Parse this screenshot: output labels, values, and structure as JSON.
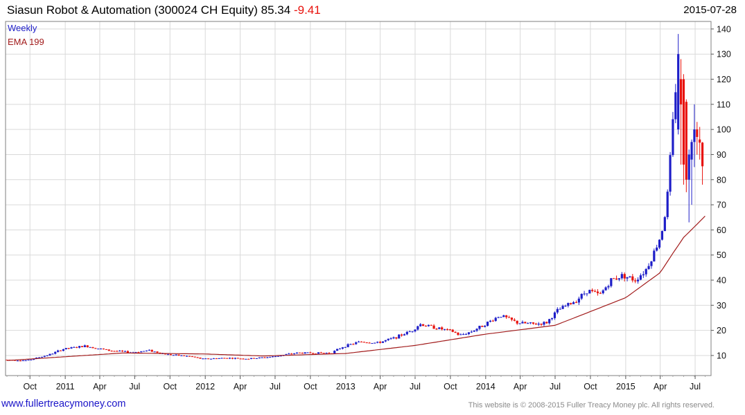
{
  "header": {
    "title": "Siasun Robot & Automation (300024 CH Equity)",
    "last_price": "85.34",
    "change": "-9.41",
    "date": "2015-07-28"
  },
  "footer": {
    "url": "www.fullertreacymoney.com",
    "copyright": "This website is © 2008-2015 Fuller Treacy Money plc. All rights reserved."
  },
  "colors": {
    "up": "#1e1ec8",
    "down": "#e8120d",
    "ema": "#a11a1a",
    "legend_weekly": "#1e1ec8",
    "legend_ema": "#a11a1a",
    "grid": "#d9d9d9"
  },
  "chart_data": {
    "type": "candlestick",
    "frequency": "Weekly",
    "legend": [
      "Weekly",
      "EMA 199"
    ],
    "legend_position": "top-left",
    "y_axis_position": "right",
    "grid": true,
    "ylim": [
      2,
      143
    ],
    "yticks": [
      10,
      20,
      30,
      40,
      50,
      60,
      70,
      80,
      90,
      100,
      110,
      120,
      130,
      140
    ],
    "x_start": "2010-08-02",
    "x_end": "2015-07-28",
    "xticks": [
      {
        "date": "2010-10-01",
        "label": "Oct"
      },
      {
        "date": "2011-01-01",
        "label": "2011"
      },
      {
        "date": "2011-04-01",
        "label": "Apr"
      },
      {
        "date": "2011-07-01",
        "label": "Jul"
      },
      {
        "date": "2011-10-01",
        "label": "Oct"
      },
      {
        "date": "2012-01-01",
        "label": "2012"
      },
      {
        "date": "2012-04-01",
        "label": "Apr"
      },
      {
        "date": "2012-07-01",
        "label": "Jul"
      },
      {
        "date": "2012-10-01",
        "label": "Oct"
      },
      {
        "date": "2013-01-01",
        "label": "2013"
      },
      {
        "date": "2013-04-01",
        "label": "Apr"
      },
      {
        "date": "2013-07-01",
        "label": "Jul"
      },
      {
        "date": "2013-10-01",
        "label": "Oct"
      },
      {
        "date": "2014-01-01",
        "label": "2014"
      },
      {
        "date": "2014-04-01",
        "label": "Apr"
      },
      {
        "date": "2014-07-01",
        "label": "Jul"
      },
      {
        "date": "2014-10-01",
        "label": "Oct"
      },
      {
        "date": "2015-01-01",
        "label": "2015"
      },
      {
        "date": "2015-04-01",
        "label": "Apr"
      },
      {
        "date": "2015-07-01",
        "label": "Jul"
      }
    ],
    "price_path": [
      [
        "2010-08-02",
        8.3
      ],
      [
        "2010-10-01",
        8.0
      ],
      [
        "2010-12-01",
        10.5
      ],
      [
        "2011-01-01",
        12.5
      ],
      [
        "2011-03-01",
        13.8
      ],
      [
        "2011-05-01",
        12.0
      ],
      [
        "2011-07-01",
        11.2
      ],
      [
        "2011-08-15",
        12.0
      ],
      [
        "2011-10-01",
        10.4
      ],
      [
        "2011-12-01",
        9.6
      ],
      [
        "2012-01-01",
        8.6
      ],
      [
        "2012-03-01",
        9.0
      ],
      [
        "2012-05-01",
        8.7
      ],
      [
        "2012-07-01",
        9.5
      ],
      [
        "2012-09-01",
        11.0
      ],
      [
        "2012-12-01",
        11.0
      ],
      [
        "2013-01-01",
        13.5
      ],
      [
        "2013-02-15",
        15.5
      ],
      [
        "2013-04-01",
        15.0
      ],
      [
        "2013-05-15",
        17.0
      ],
      [
        "2013-07-01",
        20.0
      ],
      [
        "2013-07-20",
        22.5
      ],
      [
        "2013-09-01",
        21.0
      ],
      [
        "2013-10-15",
        19.5
      ],
      [
        "2013-11-01",
        18.0
      ],
      [
        "2013-12-01",
        19.5
      ],
      [
        "2014-01-01",
        22.0
      ],
      [
        "2014-02-15",
        26.0
      ],
      [
        "2014-04-01",
        23.0
      ],
      [
        "2014-05-15",
        22.5
      ],
      [
        "2014-06-15",
        23.0
      ],
      [
        "2014-07-15",
        28.0
      ],
      [
        "2014-09-01",
        32.0
      ],
      [
        "2014-10-01",
        36.0
      ],
      [
        "2014-11-01",
        34.0
      ],
      [
        "2014-12-01",
        40.0
      ],
      [
        "2015-01-01",
        42.0
      ],
      [
        "2015-02-01",
        40.0
      ],
      [
        "2015-03-01",
        44.0
      ],
      [
        "2015-03-20",
        50.0
      ],
      [
        "2015-04-10",
        58.0
      ],
      [
        "2015-04-25",
        70.0
      ],
      [
        "2015-05-10",
        100.0
      ],
      [
        "2015-05-22",
        125.0
      ],
      [
        "2015-06-05",
        110.0
      ],
      [
        "2015-06-15",
        80.0
      ],
      [
        "2015-06-29",
        85.0
      ],
      [
        "2015-07-13",
        98.0
      ],
      [
        "2015-07-20",
        94.75
      ],
      [
        "2015-07-27",
        85.34
      ]
    ],
    "ema_path": [
      [
        "2010-08-02",
        8.0
      ],
      [
        "2011-01-01",
        9.5
      ],
      [
        "2011-06-01",
        11.0
      ],
      [
        "2012-01-01",
        10.6
      ],
      [
        "2012-06-01",
        9.8
      ],
      [
        "2013-01-01",
        10.8
      ],
      [
        "2013-07-01",
        14.0
      ],
      [
        "2014-01-01",
        18.5
      ],
      [
        "2014-07-01",
        22.0
      ],
      [
        "2015-01-01",
        33.0
      ],
      [
        "2015-04-01",
        43.0
      ],
      [
        "2015-05-01",
        50.0
      ],
      [
        "2015-06-01",
        57.0
      ],
      [
        "2015-07-01",
        61.5
      ],
      [
        "2015-07-27",
        65.5
      ]
    ],
    "special_candles": [
      {
        "date": "2015-05-18",
        "open": 100,
        "close": 130,
        "high": 138,
        "low": 98
      },
      {
        "date": "2015-05-25",
        "open": 120,
        "close": 110,
        "high": 128,
        "low": 86
      },
      {
        "date": "2015-06-01",
        "open": 120,
        "close": 86,
        "high": 122,
        "low": 78
      },
      {
        "date": "2015-06-08",
        "open": 111,
        "close": 80,
        "high": 112,
        "low": 75
      },
      {
        "date": "2015-06-15",
        "open": 80,
        "close": 90,
        "high": 92,
        "low": 63
      },
      {
        "date": "2015-06-22",
        "open": 88,
        "close": 95,
        "high": 96,
        "low": 70
      },
      {
        "date": "2015-06-29",
        "open": 95,
        "close": 100,
        "high": 110,
        "low": 85
      },
      {
        "date": "2015-07-06",
        "open": 100,
        "close": 97,
        "high": 103,
        "low": 90
      },
      {
        "date": "2015-07-13",
        "open": 96,
        "close": 94.75,
        "high": 101,
        "low": 88
      },
      {
        "date": "2015-07-20",
        "open": 94.75,
        "close": 85.34,
        "high": 95,
        "low": 78
      }
    ]
  }
}
